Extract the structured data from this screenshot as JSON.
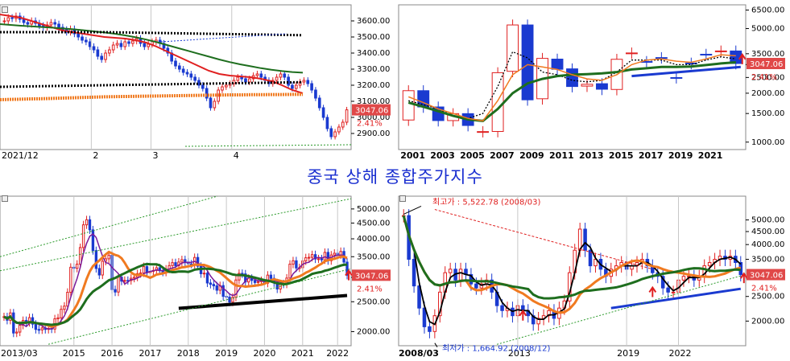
{
  "title": "중국 상해 종합주가지수",
  "colors": {
    "up": "#e02020",
    "down": "#1a3ad0",
    "ma_red": "#e02020",
    "ma_green": "#1e6e1e",
    "ma_orange": "#f07a20",
    "ma_black": "#000000",
    "ma_purple": "#7a1a9a",
    "price_tag_bg": "#e04848",
    "grid": "#c8c8c8"
  },
  "chart_data": [
    {
      "id": "daily",
      "type": "candlestick",
      "scale": "linear",
      "ylim": [
        2800,
        3700
      ],
      "yticks": [
        "3600.00",
        "3500.00",
        "3400.00",
        "3300.00",
        "3200.00",
        "3100.00",
        "3000.00",
        "2900.00"
      ],
      "ytick_values": [
        3600,
        3500,
        3400,
        3300,
        3200,
        3100,
        3000,
        2900
      ],
      "xtick_labels": [
        "2021/12",
        "2",
        "3",
        "4"
      ],
      "xtick_pos": [
        0.0,
        0.26,
        0.43,
        0.66
      ],
      "last_price": "3047.06",
      "change_pct": "2.41%",
      "closes": [
        3600,
        3620,
        3615,
        3630,
        3610,
        3590,
        3580,
        3600,
        3585,
        3570,
        3560,
        3575,
        3590,
        3580,
        3560,
        3545,
        3530,
        3550,
        3520,
        3500,
        3480,
        3470,
        3440,
        3420,
        3380,
        3360,
        3400,
        3420,
        3450,
        3460,
        3440,
        3470,
        3460,
        3475,
        3490,
        3460,
        3440,
        3455,
        3470,
        3480,
        3460,
        3430,
        3400,
        3350,
        3320,
        3300,
        3280,
        3270,
        3250,
        3230,
        3200,
        3180,
        3120,
        3060,
        3100,
        3170,
        3190,
        3200,
        3210,
        3230,
        3250,
        3240,
        3220,
        3240,
        3260,
        3270,
        3250,
        3230,
        3210,
        3230,
        3250,
        3270,
        3250,
        3200,
        3180,
        3200,
        3220,
        3230,
        3210,
        3170,
        3120,
        3060,
        3000,
        2930,
        2880,
        2910,
        2940,
        2970,
        3047
      ],
      "ma_lines": [
        {
          "color": "ma_red",
          "values": [
            3640,
            3630,
            3620,
            3600,
            3580,
            3560,
            3540,
            3530,
            3520,
            3510,
            3500,
            3495,
            3490,
            3480,
            3465,
            3440,
            3410,
            3380,
            3350,
            3320,
            3290,
            3270,
            3260,
            3255,
            3250,
            3240,
            3225,
            3200,
            3170,
            3150
          ]
        },
        {
          "color": "ma_green",
          "values": [
            3580,
            3575,
            3570,
            3566,
            3562,
            3558,
            3553,
            3548,
            3542,
            3535,
            3528,
            3520,
            3510,
            3498,
            3484,
            3468,
            3450,
            3432,
            3414,
            3396,
            3378,
            3360,
            3344,
            3330,
            3318,
            3306,
            3296,
            3288,
            3282,
            3278
          ]
        },
        {
          "color": "ma_orange_dotted",
          "values": [
            3110,
            3112,
            3113,
            3115,
            3116,
            3118,
            3120,
            3122,
            3124,
            3126,
            3128,
            3129,
            3130,
            3131,
            3132,
            3133,
            3134,
            3135,
            3136,
            3137,
            3138,
            3139,
            3140,
            3140,
            3141,
            3141,
            3142,
            3142,
            3143,
            3143
          ]
        },
        {
          "color": "ma_black_dotted",
          "values": [
            3190,
            3191,
            3192,
            3193,
            3194,
            3195,
            3196,
            3197,
            3198,
            3199,
            3200,
            3201,
            3202,
            3203,
            3204,
            3205,
            3206,
            3207,
            3208,
            3209,
            3210,
            3211,
            3212,
            3213,
            3214,
            3215,
            3216,
            3217,
            3218,
            3219
          ]
        },
        {
          "color": "ma_black_dotted",
          "values": [
            3530,
            3530,
            3530,
            3530,
            3530,
            3530,
            3530,
            3530,
            3530,
            3530,
            3530,
            3529,
            3528,
            3527,
            3526,
            3525,
            3524,
            3523,
            3522,
            3521,
            3520,
            3519,
            3518,
            3517,
            3516,
            3515,
            3514,
            3513,
            3512,
            3511
          ]
        }
      ]
    },
    {
      "id": "yearly",
      "type": "candlestick",
      "scale": "log",
      "ylim": [
        900,
        7000
      ],
      "yticks": [
        "6500.00",
        "5000.00",
        "3500.00",
        "3000.00",
        "2500.00",
        "2000.00",
        "1500.00",
        "1000.00"
      ],
      "ytick_values": [
        6500,
        5000,
        3500,
        3000,
        2500,
        2000,
        1500,
        1000
      ],
      "xtick_labels": [
        "2001",
        "2003",
        "2005",
        "2007",
        "2009",
        "2011",
        "2013",
        "2015",
        "2017",
        "2019",
        "2021"
      ],
      "last_price": "3047.06",
      "change_pct": "2.41%",
      "closes": [
        2073,
        1646,
        1357,
        1497,
        1266,
        1161,
        2675,
        5262,
        1821,
        3277,
        2808,
        2199,
        2269,
        2116,
        3235,
        3539,
        3104,
        3307,
        2494,
        3050,
        3473,
        3640,
        3047
      ],
      "opens": [
        1368,
        2073,
        1646,
        1357,
        1497,
        1161,
        1163,
        2728,
        5262,
        1849,
        3243,
        2825,
        2212,
        2289,
        2109,
        3536,
        3135,
        3314,
        2497,
        3066,
        3474,
        3639,
        3640
      ]
    },
    {
      "id": "monthly",
      "type": "candlestick",
      "scale": "log",
      "ylim": [
        1800,
        5500
      ],
      "yticks": [
        "5000.00",
        "4500.00",
        "4000.00",
        "3500.00",
        "3000.00",
        "2500.00",
        "2000.00"
      ],
      "ytick_values": [
        5000,
        4500,
        4000,
        3500,
        3000,
        2500,
        2000
      ],
      "xtick_labels": [
        "2013/03",
        "2015",
        "2016",
        "2017",
        "2018",
        "2019",
        "2020",
        "2021",
        "2022"
      ],
      "last_price": "3047.06",
      "change_pct": "2.41%",
      "closes": [
        2236,
        2177,
        2300,
        1979,
        1993,
        2098,
        2174,
        2141,
        2220,
        2115,
        2033,
        2026,
        2056,
        2033,
        2050,
        2039,
        2201,
        2217,
        2363,
        2420,
        2683,
        3235,
        3210,
        3310,
        3748,
        4441,
        4612,
        4277,
        3664,
        3205,
        3053,
        3383,
        3445,
        3539,
        2738,
        2688,
        3003,
        2916,
        2932,
        2929,
        2980,
        3004,
        3085,
        3100,
        3250,
        3104,
        3136,
        3158,
        3222,
        3154,
        3117,
        3192,
        3274,
        3348,
        3273,
        3364,
        3423,
        3366,
        3317,
        3307,
        3480,
        3259,
        3082,
        3095,
        2876,
        2847,
        2816,
        2725,
        2821,
        2603,
        2588,
        2494,
        2585,
        2941,
        3090,
        3078,
        2898,
        2979,
        2932,
        2886,
        2905,
        2929,
        2871,
        3050,
        2977,
        2880,
        2750,
        2860,
        2852,
        2984,
        3310,
        3395,
        3218,
        3224,
        3391,
        3473,
        3483,
        3555,
        3441,
        3446,
        3418,
        3615,
        3397,
        3544,
        3591,
        3547,
        3640,
        3361,
        3047
      ]
    },
    {
      "id": "monthly_long",
      "type": "candlestick",
      "scale": "log",
      "ylim": [
        1600,
        6200
      ],
      "yticks": [
        "5000.00",
        "4500.00",
        "4000.00",
        "3500.00",
        "3000.00",
        "2500.00",
        "2000.00"
      ],
      "ytick_values": [
        5000,
        4500,
        4000,
        3500,
        3000,
        2500,
        2000
      ],
      "xtick_labels": [
        "2008/03",
        "2013",
        "2019",
        "2022"
      ],
      "last_price": "3047.06",
      "change_pct": "2.41%",
      "annotation_high": "최고가 : 5,522.78 (2008/03)",
      "annotation_low": "최저가 : 1,664.92 (2008/12)",
      "closes": [
        5200,
        3500,
        2750,
        2250,
        1900,
        1820,
        2100,
        2600,
        3100,
        3200,
        2900,
        3200,
        3050,
        2800,
        2700,
        2800,
        2900,
        2600,
        2300,
        2200,
        2250,
        2100,
        2300,
        2200,
        2100,
        1950,
        2050,
        2100,
        2200,
        2050,
        2250,
        2400,
        3100,
        3800,
        4600,
        3800,
        3300,
        3500,
        3200,
        3000,
        3200,
        3300,
        3400,
        3200,
        3300,
        3400,
        3500,
        3300,
        3100,
        3000,
        2700,
        2600,
        2600,
        2900,
        3000,
        3000,
        2900,
        3000,
        3300,
        3400,
        3500,
        3600,
        3500,
        3600,
        3400,
        3047
      ]
    }
  ]
}
